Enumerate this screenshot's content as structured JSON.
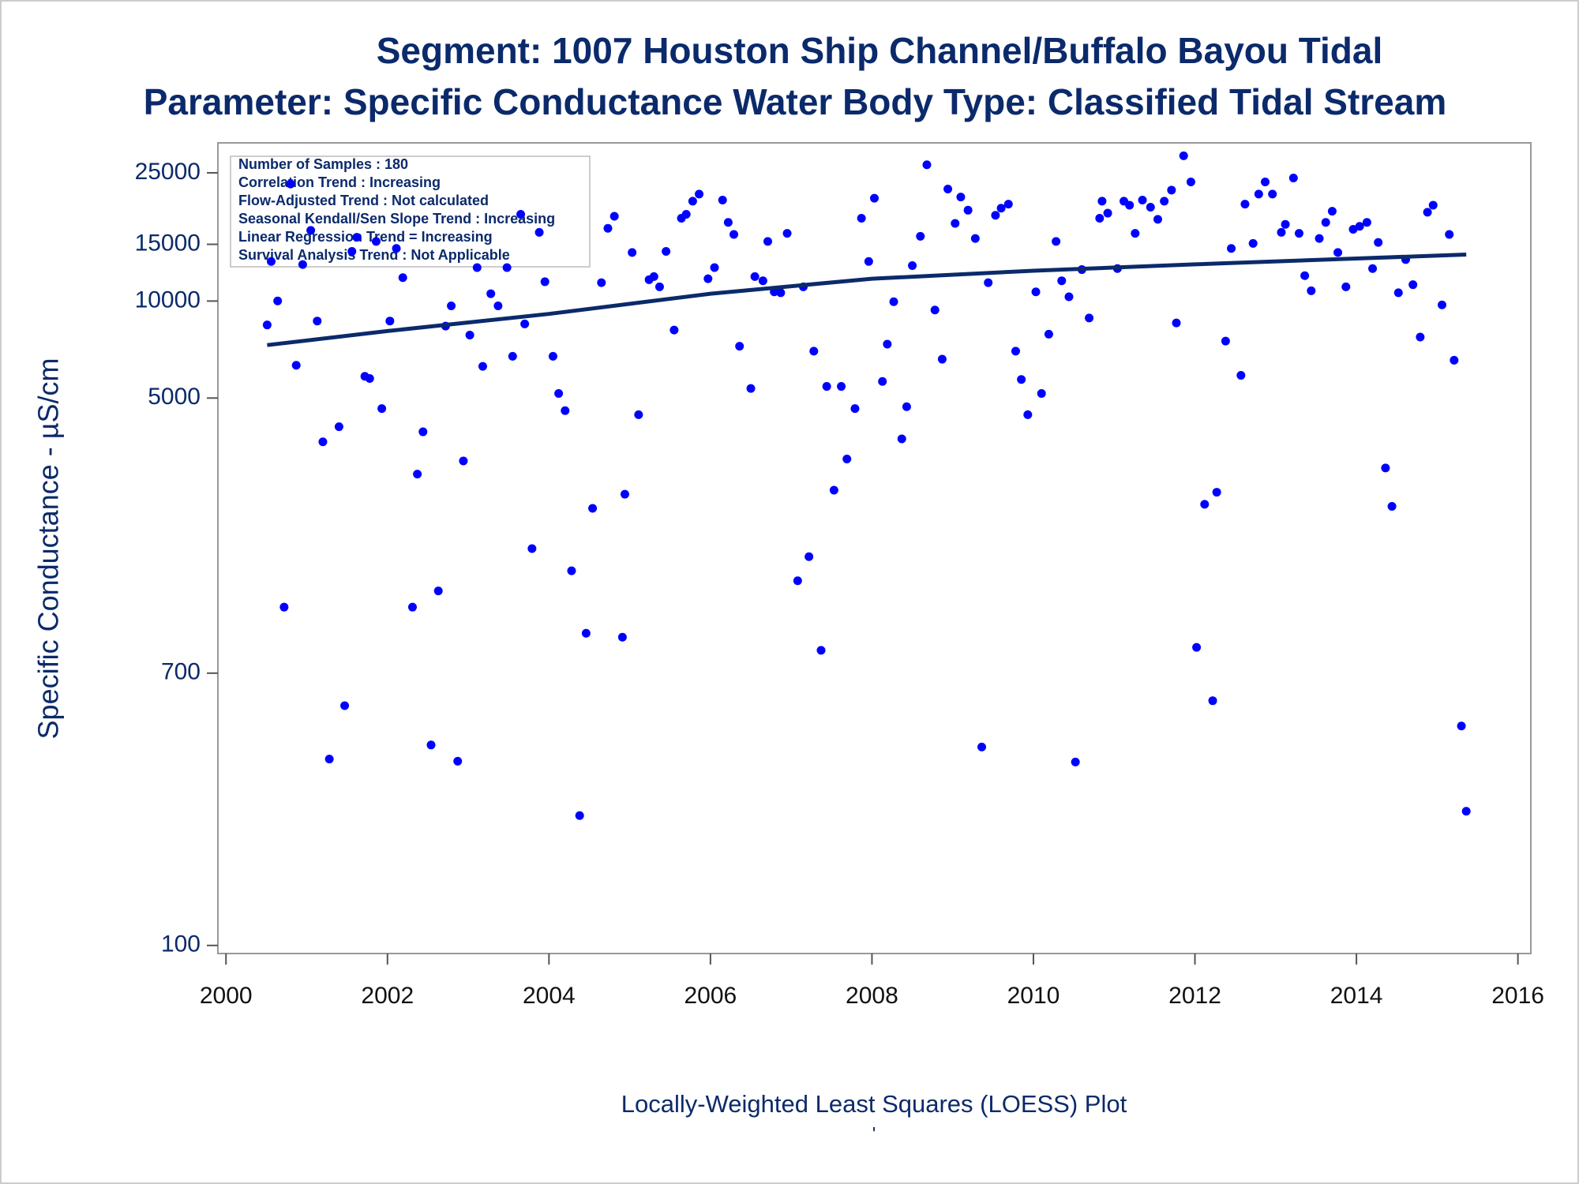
{
  "chart_data": {
    "type": "scatter",
    "title": "Segment: 1007  Houston Ship Channel/Buffalo Bayou Tidal",
    "subtitle": "Parameter: Specific Conductance   Water Body Type: Classified Tidal Stream",
    "y_label": "Specific Conductance -  µS/cm",
    "footer": "Locally-Weighted Least Squares (LOESS) Plot",
    "footnote": "'",
    "annotations": [
      "Number of Samples : 180",
      "Correlation Trend : Increasing",
      "Flow-Adjusted Trend : Not calculated",
      "Seasonal Kendall/Sen Slope Trend : Increasing",
      "Linear Regression Trend = Increasing",
      "Survival Analysis Trend : Not Applicable"
    ],
    "log_y": true,
    "xlim": [
      1999.9,
      2016.16
    ],
    "ylim": [
      94.4,
      30970
    ],
    "xticks": [
      2000,
      2002,
      2004,
      2006,
      2008,
      2010,
      2012,
      2014,
      2016
    ],
    "yticks": [
      100,
      700,
      5000,
      10000,
      15000,
      25000
    ],
    "color": "#0000ff",
    "x": [
      2000.51,
      2000.56,
      2000.64,
      2000.72,
      2000.8,
      2000.87,
      2000.95,
      2001.05,
      2001.13,
      2001.2,
      2001.28,
      2001.4,
      2001.47,
      2001.56,
      2001.62,
      2001.72,
      2001.78,
      2001.86,
      2001.93,
      2002.03,
      2002.11,
      2002.19,
      2002.31,
      2002.37,
      2002.44,
      2002.54,
      2002.63,
      2002.72,
      2002.79,
      2002.87,
      2002.94,
      2003.02,
      2003.11,
      2003.18,
      2003.28,
      2003.37,
      2003.48,
      2003.55,
      2003.65,
      2003.7,
      2003.79,
      2003.88,
      2003.95,
      2004.05,
      2004.12,
      2004.2,
      2004.28,
      2004.38,
      2004.46,
      2004.54,
      2004.65,
      2004.73,
      2004.81,
      2004.91,
      2004.94,
      2005.03,
      2005.11,
      2005.24,
      2005.3,
      2005.37,
      2005.45,
      2005.55,
      2005.64,
      2005.7,
      2005.78,
      2005.86,
      2005.97,
      2006.05,
      2006.15,
      2006.22,
      2006.29,
      2006.36,
      2006.5,
      2006.55,
      2006.65,
      2006.71,
      2006.79,
      2006.87,
      2006.95,
      2007.08,
      2007.15,
      2007.22,
      2007.28,
      2007.37,
      2007.44,
      2007.53,
      2007.62,
      2007.69,
      2007.79,
      2007.87,
      2007.96,
      2008.03,
      2008.13,
      2008.19,
      2008.27,
      2008.37,
      2008.43,
      2008.5,
      2008.6,
      2008.68,
      2008.78,
      2008.87,
      2008.94,
      2009.03,
      2009.1,
      2009.19,
      2009.28,
      2009.36,
      2009.44,
      2009.53,
      2009.6,
      2009.69,
      2009.78,
      2009.85,
      2009.93,
      2010.03,
      2010.1,
      2010.19,
      2010.28,
      2010.35,
      2010.44,
      2010.52,
      2010.6,
      2010.69,
      2010.82,
      2010.85,
      2010.92,
      2011.04,
      2011.12,
      2011.19,
      2011.26,
      2011.35,
      2011.45,
      2011.54,
      2011.62,
      2011.71,
      2011.77,
      2011.86,
      2011.95,
      2012.02,
      2012.12,
      2012.22,
      2012.27,
      2012.38,
      2012.45,
      2012.57,
      2012.62,
      2012.72,
      2012.79,
      2012.87,
      2012.96,
      2013.07,
      2013.12,
      2013.22,
      2013.29,
      2013.36,
      2013.44,
      2013.54,
      2013.62,
      2013.7,
      2013.77,
      2013.87,
      2013.96,
      2014.04,
      2014.13,
      2014.2,
      2014.27,
      2014.36,
      2014.44,
      2014.52,
      2014.61,
      2014.7,
      2014.79,
      2014.88,
      2014.95,
      2015.06,
      2015.15,
      2015.21,
      2015.3,
      2015.36
    ],
    "values": [
      8430,
      13270,
      10010,
      1122,
      23080,
      6320,
      12980,
      16570,
      8670,
      3656,
      379,
      4073,
      555,
      14260,
      15770,
      5840,
      5750,
      15310,
      4637,
      8670,
      14560,
      11820,
      1122,
      2904,
      3928,
      419,
      1260,
      8360,
      9660,
      373,
      3190,
      7840,
      12700,
      6270,
      10540,
      9660,
      12700,
      6740,
      18590,
      8490,
      1705,
      16340,
      11480,
      6740,
      5165,
      4570,
      1455,
      253,
      931,
      2273,
      11400,
      16820,
      18330,
      905,
      2515,
      14150,
      4440,
      11650,
      11910,
      11070,
      14260,
      8130,
      18070,
      18590,
      20420,
      21480,
      11730,
      12700,
      20570,
      17540,
      16100,
      7240,
      5355,
      11910,
      11560,
      15310,
      10680,
      10610,
      16220,
      1355,
      11070,
      1609,
      6990,
      824,
      5433,
      2588,
      5433,
      3235,
      4637,
      18070,
      13270,
      20850,
      5630,
      7350,
      9950,
      3735,
      4700,
      12880,
      15880,
      26480,
      9380,
      6600,
      22270,
      17420,
      21030,
      19140,
      15640,
      413,
      11400,
      18460,
      19420,
      19990,
      6990,
      5710,
      4440,
      10680,
      5165,
      7890,
      15310,
      11560,
      10310,
      371,
      12520,
      8860,
      18070,
      20420,
      18740,
      12610,
      20420,
      19840,
      16220,
      20570,
      19560,
      17930,
      20420,
      22100,
      8550,
      28240,
      23420,
      842,
      2340,
      575,
      2551,
      7510,
      14560,
      5880,
      19990,
      15100,
      21480,
      23420,
      21480,
      16340,
      17300,
      24100,
      16220,
      11990,
      10760,
      15640,
      17540,
      19000,
      14150,
      11070,
      16700,
      17060,
      17540,
      12610,
      15200,
      3033,
      2306,
      10610,
      13450,
      11240,
      7730,
      18870,
      19840,
      9730,
      16100,
      6550,
      480,
      261
    ],
    "trend": {
      "color": "#0b2a6b",
      "x": [
        2000.51,
        2002,
        2004,
        2006,
        2008,
        2010,
        2012,
        2014,
        2015.36
      ],
      "values": [
        7300,
        8070,
        9120,
        10540,
        11730,
        12420,
        13000,
        13550,
        13940
      ]
    }
  }
}
